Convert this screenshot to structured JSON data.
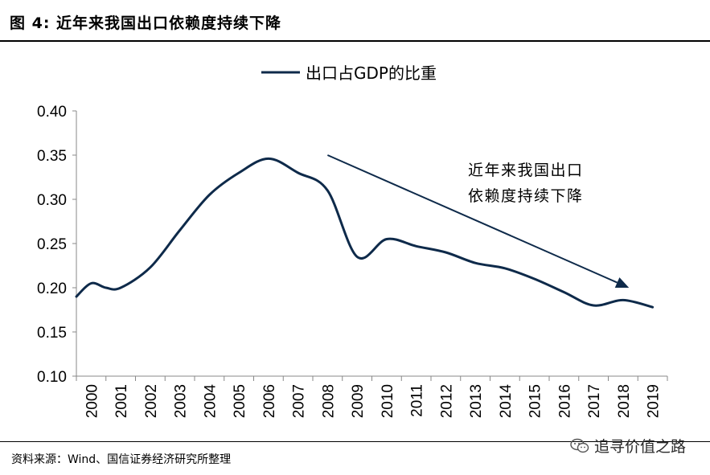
{
  "figure": {
    "title": "图  4:  近年来我国出口依赖度持续下降",
    "source": "资料来源：Wind、国信证券经济研究所整理",
    "watermark": "追寻价值之路",
    "watermark_icon": "wechat-icon"
  },
  "chart_data": {
    "type": "line",
    "title": "",
    "xlabel": "",
    "ylabel": "",
    "categories": [
      "2000",
      "2001",
      "2002",
      "2003",
      "2004",
      "2005",
      "2006",
      "2007",
      "2008",
      "2009",
      "2010",
      "2011",
      "2012",
      "2013",
      "2014",
      "2015",
      "2016",
      "2017",
      "2018",
      "2019"
    ],
    "series": [
      {
        "name": "出口占GDP的比重",
        "x": [
          1999.5,
          2000,
          2000.5,
          2001,
          2002,
          2003,
          2004,
          2005,
          2006,
          2007,
          2008,
          2009,
          2010,
          2011,
          2012,
          2013,
          2014,
          2015,
          2016,
          2017,
          2018,
          2019
        ],
        "values": [
          0.19,
          0.205,
          0.2,
          0.2,
          0.223,
          0.265,
          0.305,
          0.33,
          0.346,
          0.33,
          0.31,
          0.235,
          0.255,
          0.247,
          0.24,
          0.228,
          0.222,
          0.21,
          0.195,
          0.18,
          0.186,
          0.178
        ],
        "color": "#0e2a4a"
      }
    ],
    "ylim": [
      0.1,
      0.4
    ],
    "yticks": [
      "0.10",
      "0.15",
      "0.20",
      "0.25",
      "0.30",
      "0.35",
      "0.40"
    ],
    "grid": false,
    "legend": "top-center",
    "annotation": {
      "lines": [
        "近年来我国出口",
        "依赖度持续下降"
      ],
      "arrow_from": {
        "x": 2008,
        "y": 0.35
      },
      "arrow_to": {
        "x": 2018.2,
        "y": 0.2
      }
    }
  }
}
